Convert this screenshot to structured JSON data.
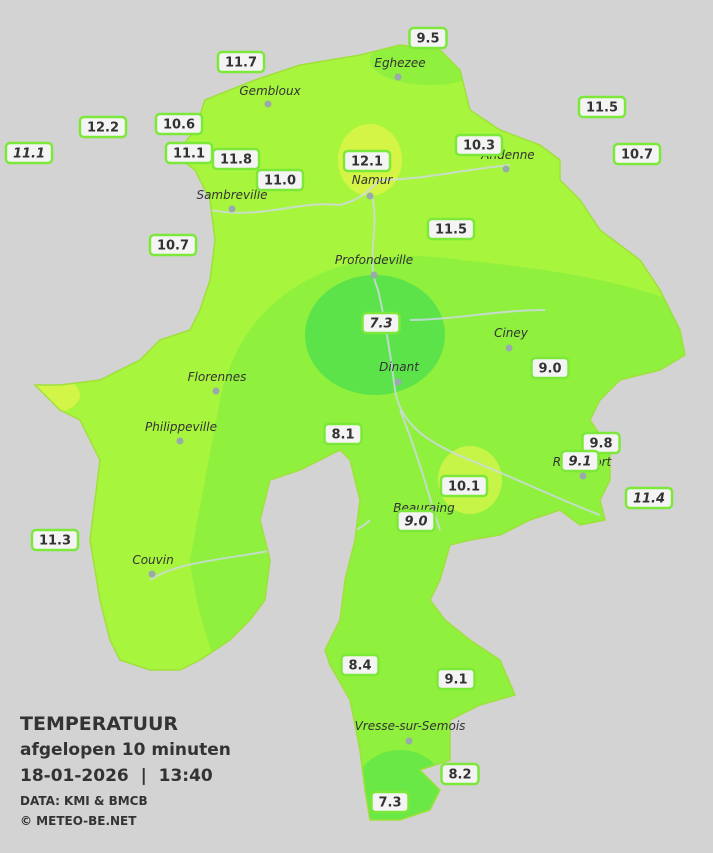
{
  "map": {
    "cities": [
      "Eghezee",
      "Gembloux",
      "Andenne",
      "Namur",
      "Sambreville",
      "Profondeville",
      "Ciney",
      "Dinant",
      "Florennes",
      "Philippeville",
      "Rochefort",
      "Beauraing",
      "Couvin",
      "Vresse-sur-Semois"
    ],
    "stations": [
      {
        "value": "9.5",
        "italic": false
      },
      {
        "value": "11.7",
        "italic": false
      },
      {
        "value": "11.5",
        "italic": false
      },
      {
        "value": "12.2",
        "italic": false
      },
      {
        "value": "10.6",
        "italic": false
      },
      {
        "value": "11.1",
        "italic": true
      },
      {
        "value": "11.1",
        "italic": false
      },
      {
        "value": "11.8",
        "italic": false
      },
      {
        "value": "12.1",
        "italic": false
      },
      {
        "value": "10.3",
        "italic": false
      },
      {
        "value": "10.7",
        "italic": false
      },
      {
        "value": "11.0",
        "italic": false
      },
      {
        "value": "11.5",
        "italic": false
      },
      {
        "value": "10.7",
        "italic": false
      },
      {
        "value": "7.3",
        "italic": true
      },
      {
        "value": "9.0",
        "italic": false
      },
      {
        "value": "8.1",
        "italic": false
      },
      {
        "value": "9.8",
        "italic": false
      },
      {
        "value": "9.1",
        "italic": true
      },
      {
        "value": "10.1",
        "italic": false
      },
      {
        "value": "11.4",
        "italic": true
      },
      {
        "value": "9.0",
        "italic": true
      },
      {
        "value": "11.3",
        "italic": false
      },
      {
        "value": "8.4",
        "italic": false
      },
      {
        "value": "9.1",
        "italic": false
      },
      {
        "value": "8.2",
        "italic": false
      },
      {
        "value": "7.3",
        "italic": false
      }
    ]
  },
  "legend": {
    "title": "TEMPERATUUR",
    "subtitle": "afgelopen 10 minuten",
    "datetime": "18-01-2026  |  13:40",
    "source": "DATA: KMI & BMCB",
    "copyright": "© METEO-BE.NET"
  }
}
